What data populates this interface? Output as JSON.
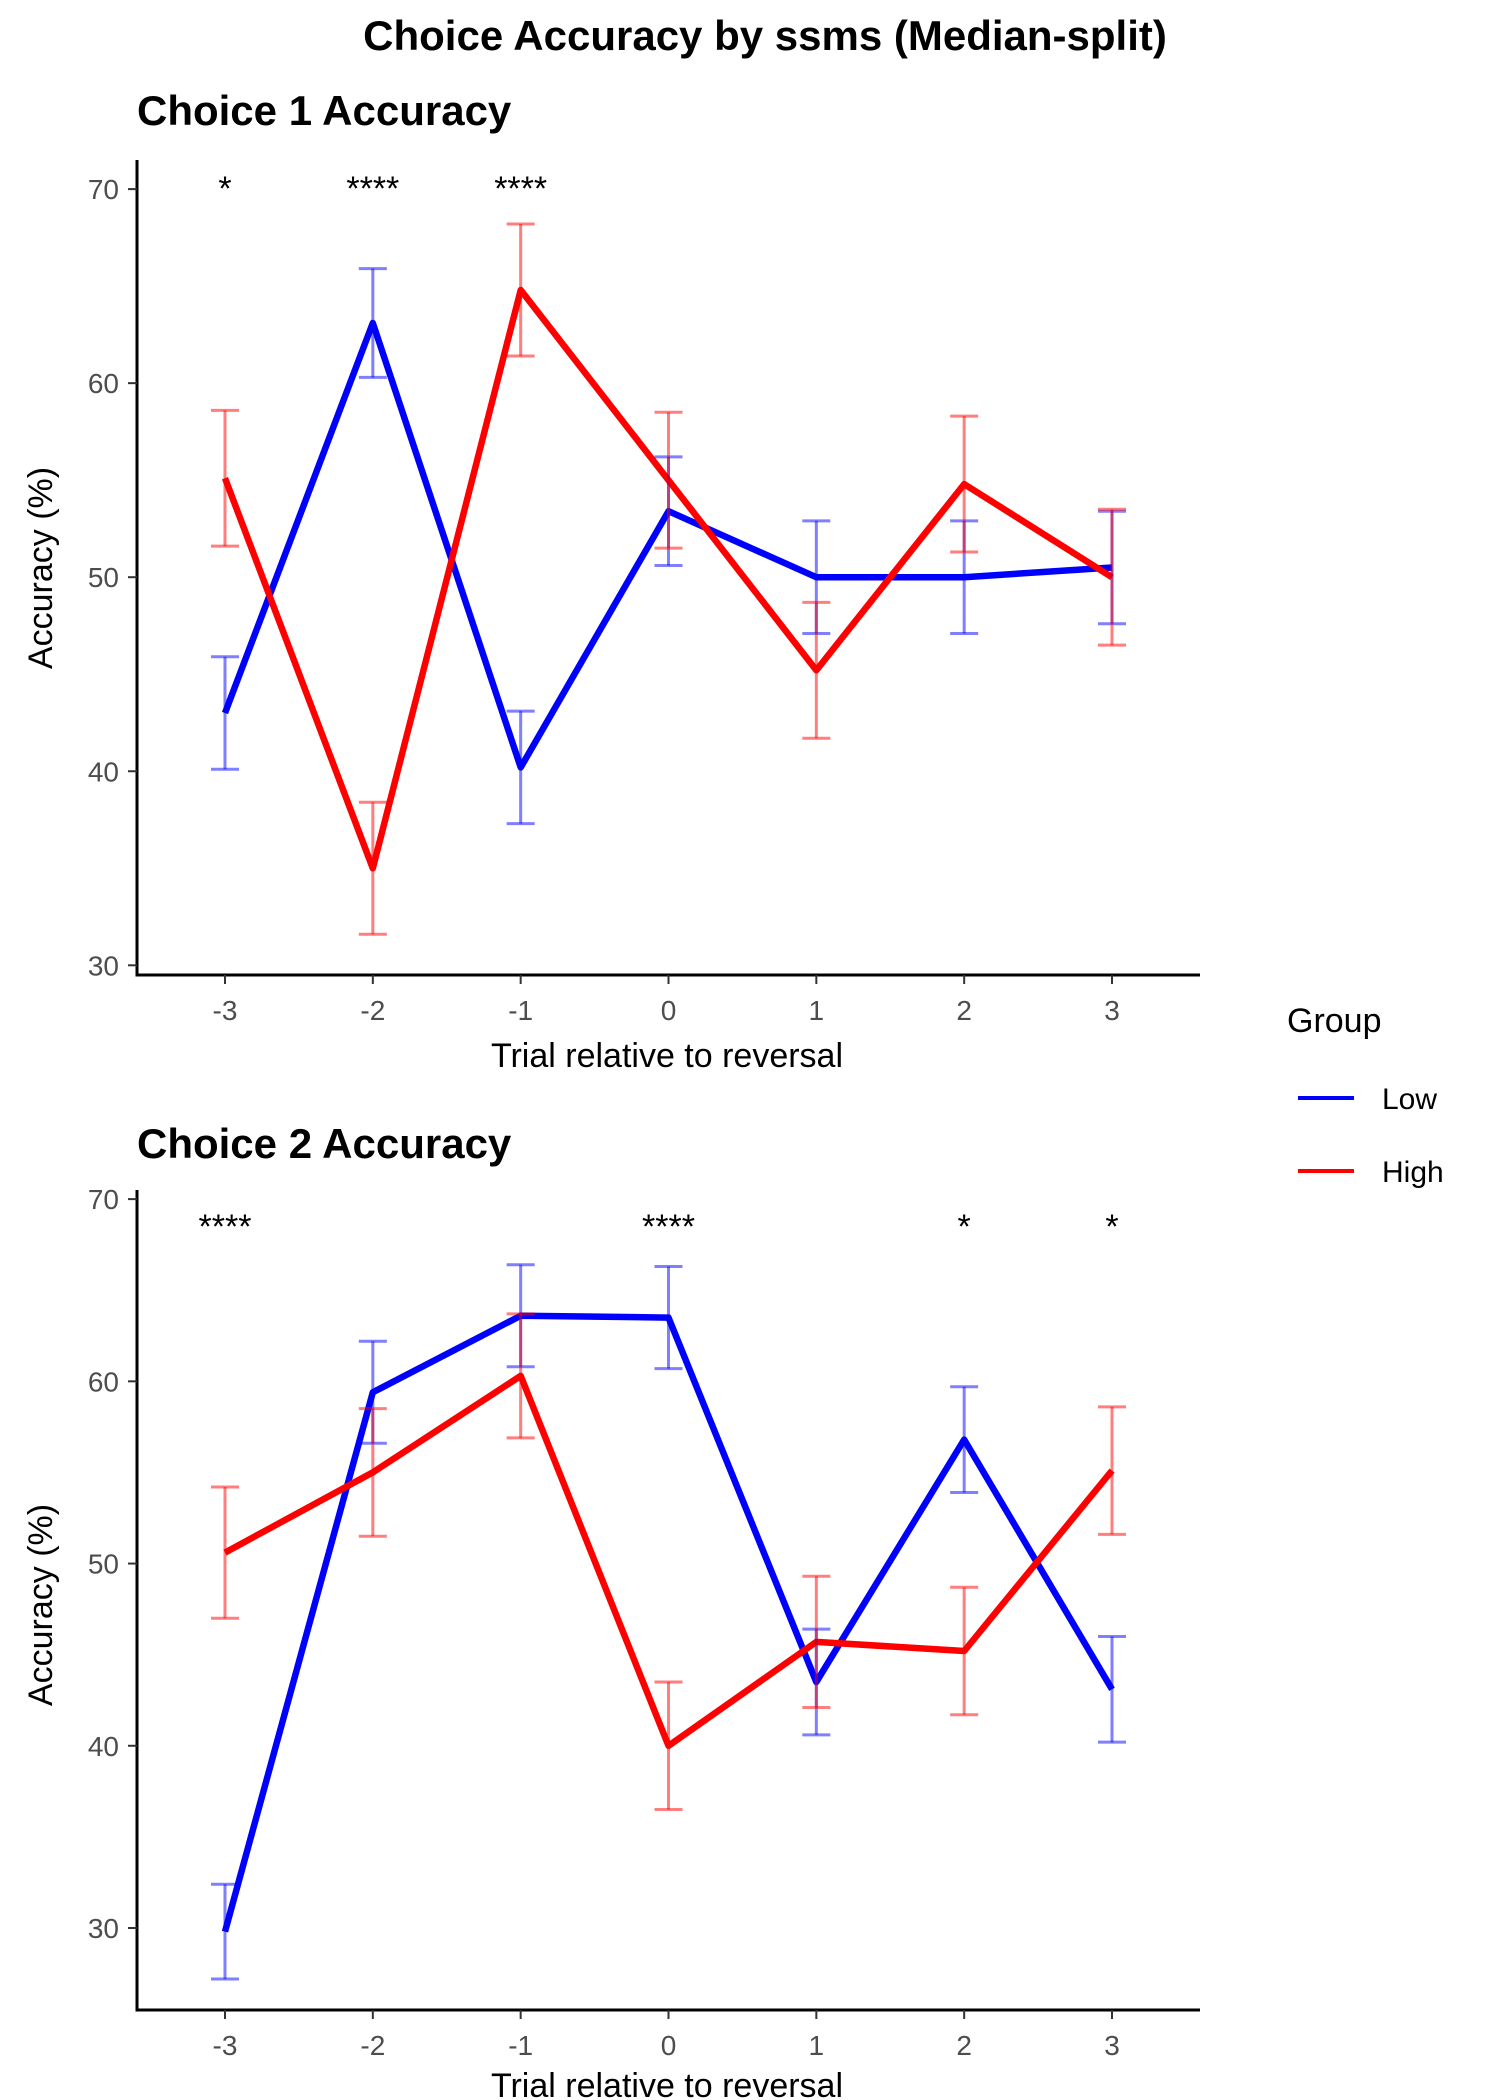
{
  "title": "Choice Accuracy by ssms (Median-split)",
  "legend": {
    "title": "Group",
    "entries": [
      {
        "label": "Low",
        "color": "#0000FF"
      },
      {
        "label": "High",
        "color": "#FF0000"
      }
    ]
  },
  "chart_data": [
    {
      "type": "line",
      "title": "Choice 1 Accuracy",
      "xlabel": "Trial relative to reversal",
      "ylabel": "Accuracy (%)",
      "x": [
        -3,
        -2,
        -1,
        0,
        1,
        2,
        3
      ],
      "xticks": [
        "-3",
        "-2",
        "-1",
        "0",
        "1",
        "2",
        "3"
      ],
      "ylim": [
        29.5,
        71.5
      ],
      "yticks": [
        30,
        40,
        50,
        60,
        70
      ],
      "grid": false,
      "legend_position": "right",
      "series": [
        {
          "name": "Low",
          "color": "#0000FF",
          "values": [
            43,
            63.1,
            40.2,
            53.4,
            50,
            50,
            50.5
          ],
          "err": [
            2.9,
            2.8,
            2.9,
            2.8,
            2.9,
            2.9,
            2.9
          ]
        },
        {
          "name": "High",
          "color": "#FF0000",
          "values": [
            55.1,
            35,
            64.8,
            55,
            45.2,
            54.8,
            50
          ],
          "err": [
            3.5,
            3.4,
            3.4,
            3.5,
            3.5,
            3.5,
            3.5
          ]
        }
      ],
      "significance": [
        {
          "x": -3,
          "label": "*"
        },
        {
          "x": -2,
          "label": "****"
        },
        {
          "x": -1,
          "label": "****"
        }
      ]
    },
    {
      "type": "line",
      "title": "Choice 2 Accuracy",
      "xlabel": "Trial relative to reversal",
      "ylabel": "Accuracy (%)",
      "x": [
        -3,
        -2,
        -1,
        0,
        1,
        2,
        3
      ],
      "xticks": [
        "-3",
        "-2",
        "-1",
        "0",
        "1",
        "2",
        "3"
      ],
      "ylim": [
        25.5,
        70.5
      ],
      "yticks": [
        30,
        40,
        50,
        60,
        70
      ],
      "grid": false,
      "legend_position": "right",
      "series": [
        {
          "name": "Low",
          "color": "#0000FF",
          "values": [
            29.8,
            59.4,
            63.6,
            63.5,
            43.5,
            56.8,
            43.1
          ],
          "err": [
            2.6,
            2.8,
            2.8,
            2.8,
            2.9,
            2.9,
            2.9
          ]
        },
        {
          "name": "High",
          "color": "#FF0000",
          "values": [
            50.6,
            55,
            60.3,
            40,
            45.7,
            45.2,
            55.1
          ],
          "err": [
            3.6,
            3.5,
            3.4,
            3.5,
            3.6,
            3.5,
            3.5
          ]
        }
      ],
      "significance": [
        {
          "x": -3,
          "label": "****"
        },
        {
          "x": 0,
          "label": "****"
        },
        {
          "x": 2,
          "label": "*"
        },
        {
          "x": 3,
          "label": "*"
        }
      ]
    }
  ]
}
